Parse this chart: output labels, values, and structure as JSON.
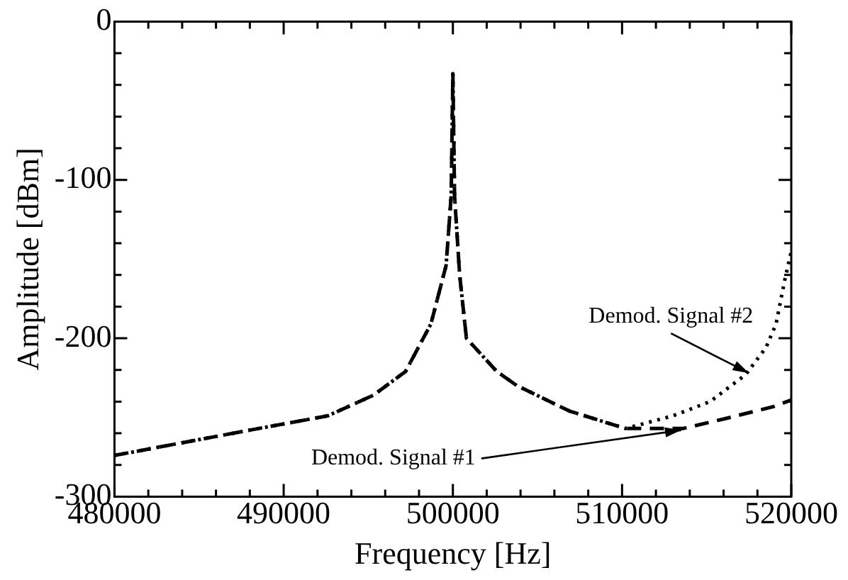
{
  "chart_data": {
    "type": "line",
    "xlabel": "Frequency [Hz]",
    "ylabel": "Amplitude [dBm]",
    "xlim": [
      480000,
      520000
    ],
    "xticks": [
      480000,
      490000,
      500000,
      510000,
      520000
    ],
    "ylim": [
      -300,
      0
    ],
    "yticks": [
      -300,
      -200,
      -100,
      0
    ],
    "grid": false,
    "legend": false,
    "marker": "none",
    "series": [
      {
        "color": "#000000",
        "line_style": "dashed",
        "x": [
          480000,
          484000,
          488000,
          492600,
          495300,
          497200,
          498700,
          499600,
          499900,
          500000,
          500100,
          500400,
          500800,
          502600,
          503800,
          506900,
          510200,
          513600,
          516000,
          519000,
          520000
        ],
        "values": [
          -274,
          -266,
          -258,
          -249,
          -236,
          -221,
          -191,
          -154,
          -110,
          -33,
          -110,
          -160,
          -200,
          -221,
          -230,
          -246,
          -257,
          -257,
          -251,
          -243,
          -239
        ]
      },
      {
        "color": "#000000",
        "line_style": "dotted",
        "x": [
          480000,
          484000,
          488000,
          492600,
          495300,
          497200,
          498700,
          499600,
          499900,
          500000,
          500100,
          500400,
          500800,
          502600,
          503800,
          506900,
          510200,
          513000,
          515200,
          517300,
          518500,
          519100,
          519600,
          520000
        ],
        "values": [
          -274,
          -266,
          -258,
          -249,
          -236,
          -221,
          -191,
          -154,
          -110,
          -33,
          -110,
          -160,
          -200,
          -221,
          -230,
          -246,
          -257,
          -249,
          -240,
          -223,
          -206,
          -191,
          -164,
          -145
        ]
      }
    ],
    "annotations": [
      {
        "text": "Demod. Signal #2",
        "x": 517500,
        "y": -222
      },
      {
        "text": "Demod. Signal #1",
        "x": 513500,
        "y": -258
      }
    ]
  }
}
